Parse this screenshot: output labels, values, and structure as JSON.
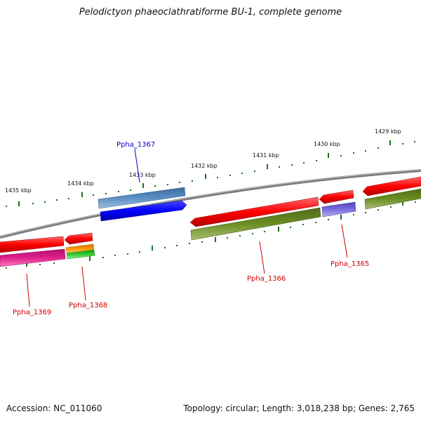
{
  "title": "Pelodictyon phaeoclathratiforme BU-1, complete genome",
  "footer": {
    "accession": "Accession: NC_011060",
    "summary": "Topology: circular; Length: 3,018,238 bp; Genes: 2,765"
  },
  "kbp_ticks": [
    "1435 kbp",
    "1434 kbp",
    "1433 kbp",
    "1432 kbp",
    "1431 kbp",
    "1430 kbp",
    "1429 kbp"
  ],
  "gene_labels": {
    "ppha_1367": "Ppha_1367",
    "ppha_1366": "Ppha_1366",
    "ppha_1365": "Ppha_1365",
    "ppha_1369": "Ppha_1369",
    "ppha_1368": "Ppha_1368"
  },
  "colors": {
    "forward_cds": "#ff0000",
    "highlight_cds": "#0000ff",
    "steelblue_cds": "#4a82b8",
    "olive_cds": "#6b8e23",
    "purple_cds": "#7060d0",
    "magenta_cds": "#e0208a",
    "orange_cds": "#ff9900",
    "green_cds": "#33cc33",
    "tick": "#1a6e1a",
    "label_red": "#cc0000",
    "label_blue": "#0000cc"
  }
}
